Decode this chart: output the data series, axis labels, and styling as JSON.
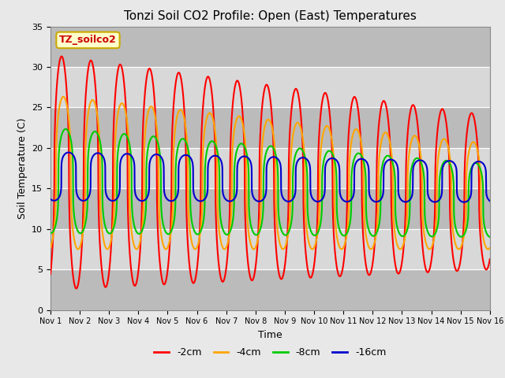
{
  "title": "Tonzi Soil CO2 Profile: Open (East) Temperatures",
  "xlabel": "Time",
  "ylabel": "Soil Temperature (C)",
  "legend_label": "TZ_soilco2",
  "series_labels": [
    "-2cm",
    "-4cm",
    "-8cm",
    "-16cm"
  ],
  "series_colors": [
    "#ff0000",
    "#ffa500",
    "#00cc00",
    "#0000cc"
  ],
  "series_linewidths": [
    1.5,
    1.5,
    1.5,
    1.5
  ],
  "ylim": [
    0,
    35
  ],
  "yticks": [
    0,
    5,
    10,
    15,
    20,
    25,
    30,
    35
  ],
  "xtick_labels": [
    "Nov 1",
    "Nov 2",
    "Nov 3",
    "Nov 4",
    "Nov 5",
    "Nov 6",
    "Nov 7",
    "Nov 8",
    "Nov 9",
    "Nov 10",
    "Nov 11",
    "Nov 12",
    "Nov 13",
    "Nov 14",
    "Nov 15",
    "Nov 16"
  ],
  "bg_color": "#e8e8e8",
  "plot_bg_color": "#d3d3d3",
  "title_fontsize": 11,
  "axis_label_fontsize": 9,
  "tick_fontsize": 8,
  "legend_fontsize": 9
}
